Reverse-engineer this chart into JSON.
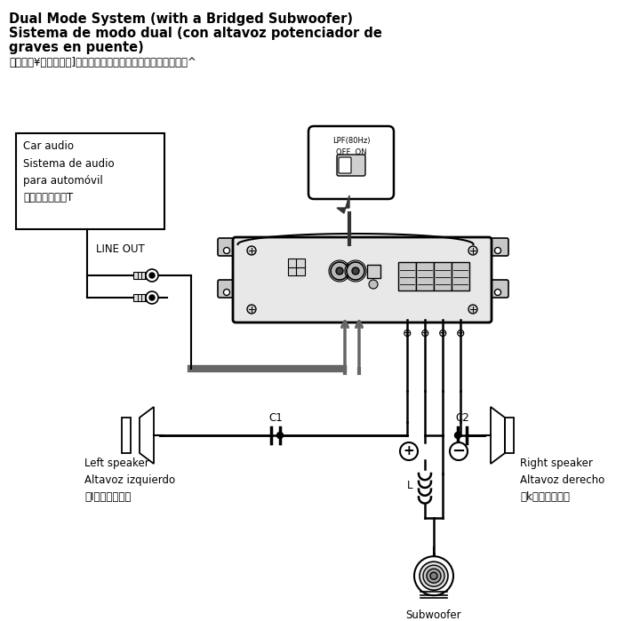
{
  "title_line1": "Dual Mode System (with a Bridged Subwoofer)",
  "title_line2": "Sistema de modo dual (con altavoz potenciador de",
  "title_line3": "graves en puente)",
  "title_line4": "ツ　オ・¥ッ為トホ。]了アセ　。カウァコュオエュチンセケ。^",
  "car_audio_label": "Car audio\nSistema de audio\npara automóvil\nィトィヨュオ了T",
  "line_out_label": "LINE OUT",
  "left_speaker_label": "Left speaker\nAltavoz izquierdo\n・Iエュチンセケ",
  "right_speaker_label": "Right speaker\nAltavoz derecho\n・kエュチンセケ",
  "subwoofer_label": "Subwoofer\nAltavoz potenciador de graves\nカウァコュオエュチンセケ",
  "lpf_label": "LPF(80Hz)\nOFF  ON",
  "c1_label": "C1",
  "c2_label": "C2",
  "l_label": "L",
  "bg_color": "#ffffff",
  "line_color": "#000000",
  "dark_gray": "#333333",
  "gray_color": "#666666"
}
